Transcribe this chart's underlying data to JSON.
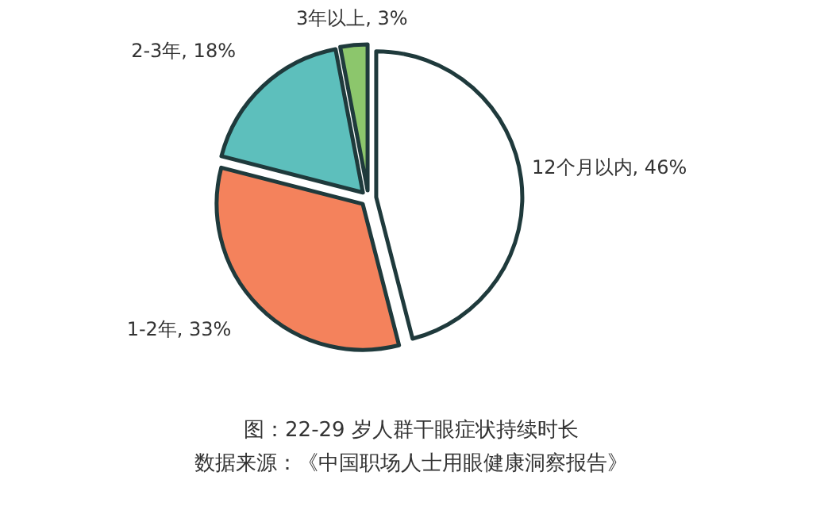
{
  "chart_data": {
    "type": "pie",
    "title": "图：22-29 岁人群干眼症状持续时长",
    "annotations": [
      "数据来源：《中国职场人士用眼健康洞察报告》"
    ],
    "categories": [
      "12个月以内",
      "1-2年",
      "2-3年",
      "3年以上"
    ],
    "values": [
      46,
      33,
      18,
      3
    ],
    "colors": [
      "#ffffff",
      "#f4825c",
      "#5dbfbc",
      "#8cc66c"
    ],
    "value_labels": [
      ", 46%",
      ", 33%",
      ", 18%",
      ", 3%"
    ]
  }
}
